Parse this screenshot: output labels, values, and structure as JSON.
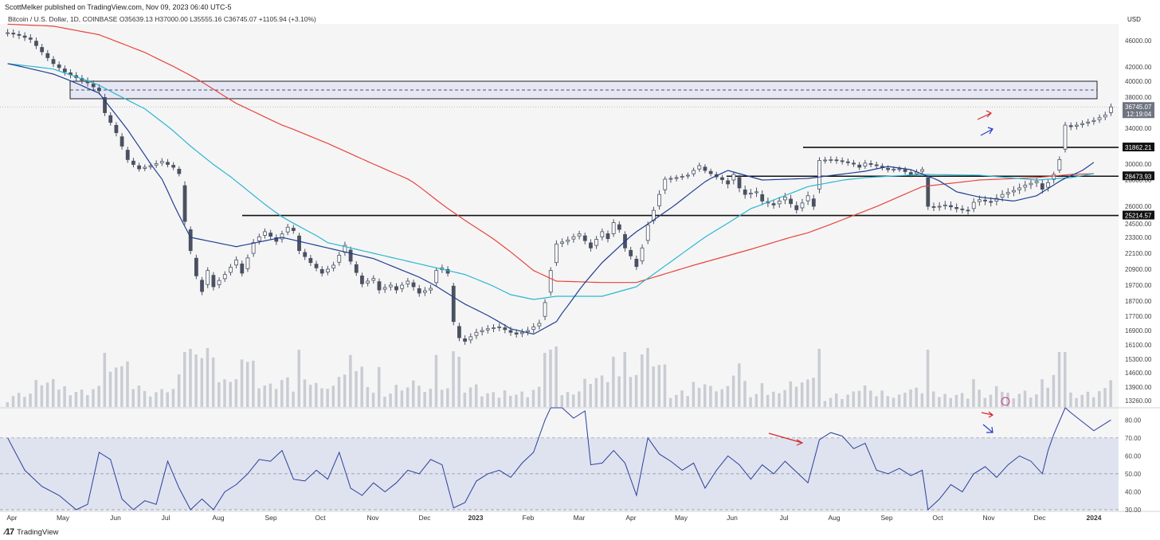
{
  "header": {
    "published": "ScottMelker published on TradingView.com, Nov 09, 2023 06:40 UTC-5",
    "legend": "Bitcoin / U.S. Dollar, 1D, COINBASE  O35639.13  H37000.00  L35555.16  C36745.07  +1105.94 (+3.10%)"
  },
  "footer": {
    "brand": "TradingView"
  },
  "colors": {
    "candle": "#4a5160",
    "ma_red": "#e8453c",
    "ma_cyan": "#2bb7d0",
    "ma_navy": "#1f3f8f",
    "rsi_line": "#2a3f9c",
    "rsi_band": "#dfe3ef",
    "zone": "#e6e7f5",
    "volume": "#c9ccd3"
  },
  "chart_data": {
    "type": "candlestick",
    "currency": "USD",
    "price_ticks": [
      "46000.00",
      "42000.00",
      "40000.00",
      "38000.00",
      "34000.00",
      "30000.00",
      "28000.00",
      "26000.00",
      "24500.00",
      "23300.00",
      "22100.00",
      "20900.00",
      "19700.00",
      "18700.00",
      "17700.00",
      "16900.00",
      "16100.00",
      "15300.00",
      "14600.00",
      "13900.00",
      "13260.00"
    ],
    "price_labels": [
      {
        "value": 36745.07,
        "label": "36745.07",
        "sub": "12:19:04",
        "style": "current"
      },
      {
        "value": 31862.21,
        "label": "31862.21",
        "style": "level"
      },
      {
        "value": 28473.93,
        "label": "28473.93",
        "style": "level"
      },
      {
        "value": 25214.57,
        "label": "25214.57",
        "style": "level"
      }
    ],
    "x_ticks": [
      "Apr",
      "May",
      "Jun",
      "Jul",
      "Aug",
      "Sep",
      "Oct",
      "Nov",
      "Dec",
      "2023",
      "Feb",
      "Mar",
      "Apr",
      "May",
      "Jun",
      "Jul",
      "Aug",
      "Sep",
      "Oct",
      "Nov",
      "Dec",
      "2024"
    ],
    "rsi_ticks": [
      "80.00",
      "70.00",
      "60.00",
      "50.00",
      "40.00",
      "30.00"
    ],
    "zone": {
      "from": 37800,
      "to": 40000,
      "mid": 38900
    },
    "levels": [
      31862.21,
      28473.93,
      25214.57
    ],
    "price_anchors": [
      [
        0,
        47200
      ],
      [
        2,
        46800
      ],
      [
        4,
        46200
      ],
      [
        6,
        44300
      ],
      [
        8,
        42500
      ],
      [
        10,
        41300
      ],
      [
        12,
        40500
      ],
      [
        14,
        39800
      ],
      [
        16,
        38800
      ],
      [
        17,
        36000
      ],
      [
        19,
        33500
      ],
      [
        21,
        30500
      ],
      [
        23,
        29400
      ],
      [
        25,
        29800
      ],
      [
        27,
        30300
      ],
      [
        29,
        29600
      ],
      [
        30,
        28800
      ],
      [
        31,
        24700
      ],
      [
        32,
        22300
      ],
      [
        33,
        20400
      ],
      [
        34,
        19300
      ],
      [
        35,
        20800
      ],
      [
        36,
        19600
      ],
      [
        38,
        20500
      ],
      [
        40,
        21600
      ],
      [
        41,
        20600
      ],
      [
        43,
        22900
      ],
      [
        45,
        23800
      ],
      [
        47,
        23000
      ],
      [
        49,
        24200
      ],
      [
        50,
        23900
      ],
      [
        51,
        22300
      ],
      [
        53,
        21400
      ],
      [
        55,
        20600
      ],
      [
        57,
        21200
      ],
      [
        59,
        22700
      ],
      [
        60,
        21500
      ],
      [
        62,
        19800
      ],
      [
        64,
        20200
      ],
      [
        65,
        19400
      ],
      [
        67,
        19700
      ],
      [
        68,
        19400
      ],
      [
        70,
        20000
      ],
      [
        71,
        19600
      ],
      [
        72,
        19200
      ],
      [
        74,
        19500
      ],
      [
        75,
        20800
      ],
      [
        76,
        21000
      ],
      [
        77,
        20600
      ],
      [
        78,
        17400
      ],
      [
        79,
        16500
      ],
      [
        80,
        16300
      ],
      [
        82,
        16800
      ],
      [
        84,
        17000
      ],
      [
        86,
        17100
      ],
      [
        88,
        16800
      ],
      [
        89,
        16700
      ],
      [
        91,
        16900
      ],
      [
        93,
        17300
      ],
      [
        94,
        18600
      ],
      [
        95,
        20800
      ],
      [
        96,
        22800
      ],
      [
        98,
        23100
      ],
      [
        100,
        23600
      ],
      [
        102,
        22500
      ],
      [
        104,
        23800
      ],
      [
        105,
        23200
      ],
      [
        106,
        24600
      ],
      [
        107,
        24000
      ],
      [
        108,
        22500
      ],
      [
        109,
        21900
      ],
      [
        110,
        21100
      ],
      [
        111,
        22500
      ],
      [
        112,
        24400
      ],
      [
        114,
        26900
      ],
      [
        115,
        28100
      ],
      [
        117,
        28300
      ],
      [
        119,
        28600
      ],
      [
        121,
        29800
      ],
      [
        122,
        29200
      ],
      [
        124,
        28400
      ],
      [
        126,
        27700
      ],
      [
        127,
        28700
      ],
      [
        128,
        27400
      ],
      [
        129,
        26900
      ],
      [
        131,
        27100
      ],
      [
        132,
        26400
      ],
      [
        134,
        26100
      ],
      [
        136,
        26700
      ],
      [
        138,
        25700
      ],
      [
        140,
        26800
      ],
      [
        141,
        26000
      ],
      [
        142,
        30400
      ],
      [
        144,
        30500
      ],
      [
        146,
        30300
      ],
      [
        148,
        30000
      ],
      [
        149,
        29600
      ],
      [
        150,
        30100
      ],
      [
        152,
        29800
      ],
      [
        154,
        29300
      ],
      [
        156,
        29400
      ],
      [
        158,
        28700
      ],
      [
        160,
        29300
      ],
      [
        161,
        26000
      ],
      [
        162,
        25900
      ],
      [
        164,
        26100
      ],
      [
        166,
        25800
      ],
      [
        168,
        25600
      ],
      [
        169,
        26300
      ],
      [
        170,
        26500
      ],
      [
        172,
        26300
      ],
      [
        174,
        26900
      ],
      [
        176,
        27200
      ],
      [
        178,
        27600
      ],
      [
        180,
        27900
      ],
      [
        181,
        27300
      ],
      [
        182,
        27800
      ],
      [
        183,
        28700
      ],
      [
        184,
        30500
      ],
      [
        185,
        34400
      ],
      [
        186,
        34200
      ],
      [
        188,
        34600
      ],
      [
        190,
        35000
      ],
      [
        192,
        35700
      ],
      [
        193,
        36745
      ]
    ],
    "ma_red_anchors": [
      [
        0,
        48500
      ],
      [
        8,
        48200
      ],
      [
        16,
        46900
      ],
      [
        24,
        44200
      ],
      [
        32,
        40800
      ],
      [
        40,
        37200
      ],
      [
        48,
        34400
      ],
      [
        56,
        32300
      ],
      [
        64,
        30000
      ],
      [
        72,
        27500
      ],
      [
        80,
        24800
      ],
      [
        88,
        22200
      ],
      [
        92,
        20800
      ],
      [
        96,
        20000
      ],
      [
        104,
        19900
      ],
      [
        110,
        19900
      ],
      [
        120,
        21200
      ],
      [
        130,
        22400
      ],
      [
        140,
        23700
      ],
      [
        150,
        25600
      ],
      [
        160,
        27500
      ],
      [
        170,
        28000
      ],
      [
        180,
        28300
      ],
      [
        186,
        28700
      ],
      [
        190,
        28800
      ]
    ],
    "ma_cyan_anchors": [
      [
        0,
        42500
      ],
      [
        8,
        41700
      ],
      [
        16,
        39500
      ],
      [
        24,
        36500
      ],
      [
        32,
        32000
      ],
      [
        40,
        27900
      ],
      [
        48,
        25100
      ],
      [
        56,
        22900
      ],
      [
        64,
        22100
      ],
      [
        72,
        21300
      ],
      [
        80,
        20500
      ],
      [
        88,
        19100
      ],
      [
        92,
        18800
      ],
      [
        96,
        19000
      ],
      [
        104,
        19000
      ],
      [
        110,
        19600
      ],
      [
        120,
        22700
      ],
      [
        130,
        25800
      ],
      [
        140,
        27500
      ],
      [
        150,
        28300
      ],
      [
        160,
        28700
      ],
      [
        170,
        28600
      ],
      [
        180,
        28000
      ],
      [
        186,
        28300
      ],
      [
        190,
        28800
      ]
    ],
    "ma_navy_anchors": [
      [
        0,
        42500
      ],
      [
        8,
        41000
      ],
      [
        16,
        38500
      ],
      [
        24,
        31000
      ],
      [
        32,
        23300
      ],
      [
        40,
        22600
      ],
      [
        48,
        23300
      ],
      [
        56,
        22500
      ],
      [
        64,
        21700
      ],
      [
        72,
        20300
      ],
      [
        80,
        18500
      ],
      [
        88,
        17000
      ],
      [
        92,
        16700
      ],
      [
        96,
        17400
      ],
      [
        100,
        19400
      ],
      [
        104,
        21400
      ],
      [
        110,
        23800
      ],
      [
        120,
        27200
      ],
      [
        126,
        29200
      ],
      [
        132,
        28000
      ],
      [
        140,
        28200
      ],
      [
        150,
        29100
      ],
      [
        154,
        29700
      ],
      [
        158,
        29300
      ],
      [
        162,
        28200
      ],
      [
        166,
        27100
      ],
      [
        170,
        26700
      ],
      [
        176,
        26400
      ],
      [
        180,
        26800
      ],
      [
        184,
        27900
      ],
      [
        188,
        29200
      ],
      [
        190,
        30200
      ]
    ],
    "rsi_anchors": [
      [
        0,
        70
      ],
      [
        3,
        52
      ],
      [
        6,
        43
      ],
      [
        9,
        38
      ],
      [
        12,
        30
      ],
      [
        14,
        33
      ],
      [
        16,
        62
      ],
      [
        18,
        58
      ],
      [
        20,
        36
      ],
      [
        22,
        30
      ],
      [
        24,
        35
      ],
      [
        26,
        33
      ],
      [
        28,
        57
      ],
      [
        30,
        42
      ],
      [
        32,
        28
      ],
      [
        34,
        36
      ],
      [
        36,
        28
      ],
      [
        38,
        40
      ],
      [
        40,
        44
      ],
      [
        42,
        50
      ],
      [
        44,
        58
      ],
      [
        46,
        57
      ],
      [
        48,
        63
      ],
      [
        50,
        47
      ],
      [
        52,
        46
      ],
      [
        54,
        52
      ],
      [
        56,
        47
      ],
      [
        58,
        62
      ],
      [
        60,
        42
      ],
      [
        62,
        38
      ],
      [
        64,
        45
      ],
      [
        66,
        40
      ],
      [
        68,
        45
      ],
      [
        70,
        52
      ],
      [
        72,
        50
      ],
      [
        74,
        58
      ],
      [
        76,
        55
      ],
      [
        78,
        31
      ],
      [
        80,
        34
      ],
      [
        82,
        46
      ],
      [
        84,
        50
      ],
      [
        86,
        52
      ],
      [
        88,
        48
      ],
      [
        90,
        56
      ],
      [
        92,
        62
      ],
      [
        94,
        80
      ],
      [
        95,
        92
      ],
      [
        97,
        87
      ],
      [
        99,
        81
      ],
      [
        101,
        85
      ],
      [
        102,
        55
      ],
      [
        104,
        56
      ],
      [
        106,
        63
      ],
      [
        108,
        56
      ],
      [
        110,
        38
      ],
      [
        112,
        70
      ],
      [
        114,
        61
      ],
      [
        116,
        57
      ],
      [
        118,
        52
      ],
      [
        120,
        56
      ],
      [
        122,
        42
      ],
      [
        124,
        52
      ],
      [
        126,
        60
      ],
      [
        128,
        55
      ],
      [
        130,
        47
      ],
      [
        132,
        55
      ],
      [
        134,
        50
      ],
      [
        136,
        57
      ],
      [
        138,
        51
      ],
      [
        140,
        45
      ],
      [
        142,
        69
      ],
      [
        144,
        73
      ],
      [
        146,
        71
      ],
      [
        148,
        64
      ],
      [
        150,
        67
      ],
      [
        152,
        52
      ],
      [
        154,
        50
      ],
      [
        156,
        53
      ],
      [
        158,
        49
      ],
      [
        160,
        52
      ],
      [
        161,
        29
      ],
      [
        163,
        36
      ],
      [
        165,
        44
      ],
      [
        167,
        40
      ],
      [
        169,
        50
      ],
      [
        171,
        54
      ],
      [
        173,
        48
      ],
      [
        175,
        55
      ],
      [
        177,
        60
      ],
      [
        179,
        57
      ],
      [
        181,
        50
      ],
      [
        182,
        63
      ],
      [
        183,
        72
      ],
      [
        185,
        88
      ],
      [
        186,
        84
      ],
      [
        188,
        79
      ],
      [
        190,
        74
      ],
      [
        192,
        78
      ],
      [
        193,
        80
      ]
    ]
  }
}
